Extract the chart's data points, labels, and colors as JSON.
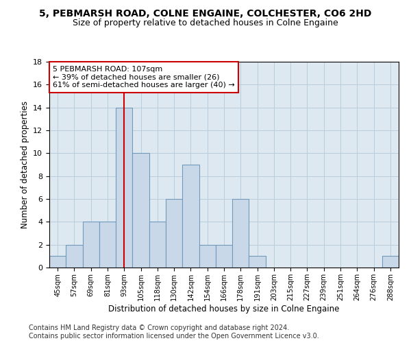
{
  "title1": "5, PEBMARSH ROAD, COLNE ENGAINE, COLCHESTER, CO6 2HD",
  "title2": "Size of property relative to detached houses in Colne Engaine",
  "xlabel": "Distribution of detached houses by size in Colne Engaine",
  "ylabel": "Number of detached properties",
  "footnote": "Contains HM Land Registry data © Crown copyright and database right 2024.\nContains public sector information licensed under the Open Government Licence v3.0.",
  "bin_labels": [
    "45sqm",
    "57sqm",
    "69sqm",
    "81sqm",
    "93sqm",
    "105sqm",
    "118sqm",
    "130sqm",
    "142sqm",
    "154sqm",
    "166sqm",
    "178sqm",
    "191sqm",
    "203sqm",
    "215sqm",
    "227sqm",
    "239sqm",
    "251sqm",
    "264sqm",
    "276sqm",
    "288sqm"
  ],
  "bar_values": [
    1,
    2,
    4,
    4,
    14,
    10,
    4,
    6,
    9,
    2,
    2,
    6,
    1,
    0,
    0,
    0,
    0,
    0,
    0,
    0,
    1
  ],
  "bar_color": "#c8d8e8",
  "bar_edge_color": "#7099bb",
  "vline_index": 4.5,
  "annotation_text": "5 PEBMARSH ROAD: 107sqm\n← 39% of detached houses are smaller (26)\n61% of semi-detached houses are larger (40) →",
  "annotation_box_color": "#ffffff",
  "annotation_box_edge": "#cc0000",
  "vline_color": "#cc0000",
  "ylim": [
    0,
    18
  ],
  "yticks": [
    0,
    2,
    4,
    6,
    8,
    10,
    12,
    14,
    16,
    18
  ],
  "ax_facecolor": "#dde8f0",
  "background_color": "#ffffff",
  "grid_color": "#b8cedd"
}
